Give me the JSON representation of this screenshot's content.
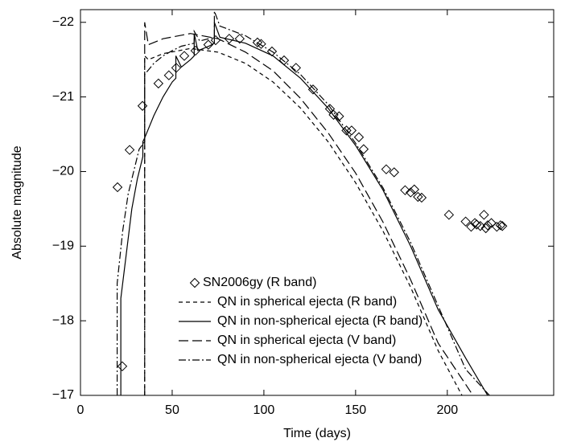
{
  "chart_data": {
    "type": "line",
    "xlabel": "Time (days)",
    "ylabel": "Absolute magnitude",
    "xlim": [
      0,
      258
    ],
    "ylim": [
      -17,
      -22.17
    ],
    "xticks": [
      0,
      50,
      100,
      150,
      200
    ],
    "yticks": [
      {
        "value": -17,
        "label": "−17"
      },
      {
        "value": -18,
        "label": "−18"
      },
      {
        "value": -19,
        "label": "−19"
      },
      {
        "value": -20,
        "label": "−20"
      },
      {
        "value": -21,
        "label": "−21"
      },
      {
        "value": -22,
        "label": "−22"
      }
    ],
    "legend": "lower-center",
    "series": [
      {
        "name": "SN2006gy (R band)",
        "color": "#000000",
        "marker": "diamond",
        "x": [
          22.8,
          20.2,
          26.8,
          33.8,
          42.5,
          48.2,
          52.2,
          56.6,
          62.7,
          69.7,
          73.7,
          81.1,
          86.8,
          96.5,
          98.5,
          104.4,
          111,
          117.5,
          126.8,
          136,
          138,
          141,
          145,
          147.8,
          151.8,
          154.4,
          166.7,
          171,
          177,
          180,
          182,
          184,
          186,
          200.9,
          210,
          213,
          215,
          216,
          218,
          220,
          221,
          222,
          224,
          227,
          229,
          230
        ],
        "values": [
          -17.39,
          -19.79,
          -20.29,
          -20.88,
          -21.18,
          -21.29,
          -21.39,
          -21.55,
          -21.62,
          -21.7,
          -21.76,
          -21.78,
          -21.78,
          -21.73,
          -21.71,
          -21.61,
          -21.49,
          -21.39,
          -21.1,
          -20.84,
          -20.76,
          -20.74,
          -20.55,
          -20.55,
          -20.46,
          -20.3,
          -20.03,
          -19.99,
          -19.75,
          -19.72,
          -19.76,
          -19.66,
          -19.65,
          -19.42,
          -19.33,
          -19.26,
          -19.31,
          -19.29,
          -19.27,
          -19.42,
          -19.24,
          -19.28,
          -19.31,
          -19.26,
          -19.28,
          -19.27
        ]
      },
      {
        "name": "QN in spherical ejecta (R band)",
        "color": "#000000",
        "linestyle": "dashed",
        "x": [
          35,
          35,
          37,
          45,
          60,
          75,
          90,
          105,
          120,
          135,
          150,
          165,
          180,
          195,
          208
        ],
        "values": [
          -17,
          -21.55,
          -21.5,
          -21.58,
          -21.65,
          -21.6,
          -21.45,
          -21.2,
          -20.85,
          -20.4,
          -19.85,
          -19.2,
          -18.45,
          -17.6,
          -17
        ]
      },
      {
        "name": "QN in non-spherical ejecta (R band)",
        "color": "#000000",
        "linestyle": "solid",
        "x": [
          22,
          22,
          25,
          28,
          31,
          34,
          34,
          35,
          40,
          45,
          50,
          52,
          52,
          55,
          60,
          62,
          62,
          64,
          70,
          73,
          73,
          76,
          90,
          105,
          120,
          135,
          150,
          165,
          180,
          195,
          210,
          222
        ],
        "values": [
          -17,
          -18.3,
          -18.9,
          -19.5,
          -19.9,
          -20.2,
          -20.4,
          -20.45,
          -20.75,
          -21.0,
          -21.2,
          -21.25,
          -21.55,
          -21.4,
          -21.5,
          -21.55,
          -21.85,
          -21.62,
          -21.68,
          -21.72,
          -22.0,
          -21.8,
          -21.72,
          -21.55,
          -21.25,
          -20.85,
          -20.35,
          -19.75,
          -19.0,
          -18.15,
          -17.5,
          -17
        ]
      },
      {
        "name": "QN in spherical ejecta (V band)",
        "color": "#000000",
        "linestyle": "longdash",
        "x": [
          35,
          35,
          37,
          45,
          60,
          75,
          90,
          105,
          120,
          135,
          150,
          165,
          180,
          195,
          214
        ],
        "values": [
          -17,
          -22.0,
          -21.7,
          -21.78,
          -21.85,
          -21.78,
          -21.6,
          -21.35,
          -20.98,
          -20.52,
          -19.98,
          -19.32,
          -18.55,
          -17.7,
          -17
        ]
      },
      {
        "name": "QN in non-spherical ejecta (V band)",
        "color": "#000000",
        "linestyle": "dashdot",
        "x": [
          20,
          20,
          23,
          26,
          29,
          32,
          35,
          35,
          40,
          45,
          50,
          55,
          62,
          62,
          65,
          73,
          73,
          76,
          90,
          105,
          120,
          135,
          150,
          165,
          180,
          195,
          210,
          223
        ],
        "values": [
          -17,
          -18.5,
          -19.2,
          -19.7,
          -20.0,
          -20.3,
          -20.4,
          -21.3,
          -21.45,
          -21.55,
          -21.62,
          -21.68,
          -21.72,
          -21.88,
          -21.75,
          -21.8,
          -22.15,
          -21.95,
          -21.82,
          -21.6,
          -21.3,
          -20.9,
          -20.38,
          -19.78,
          -19.05,
          -18.2,
          -17.35,
          -17
        ]
      }
    ]
  }
}
